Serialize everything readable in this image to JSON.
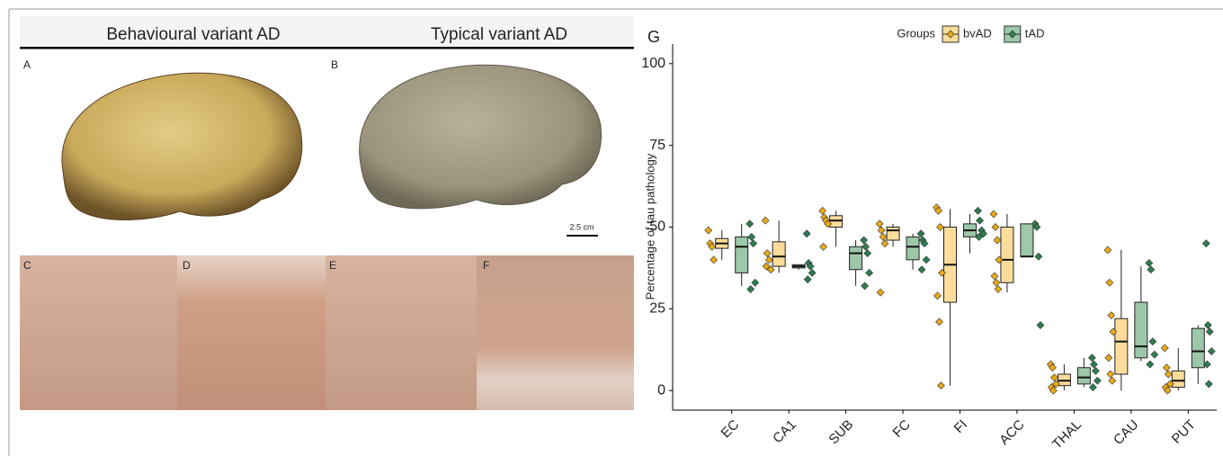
{
  "figure": {
    "headers": [
      "Behavioural variant AD",
      "Typical variant AD"
    ],
    "panel_labels": [
      "A",
      "B",
      "C",
      "D",
      "E",
      "F",
      "G"
    ],
    "scale_bar": "2.5 cm"
  },
  "chart_data": {
    "type": "box",
    "categories": [
      "EC",
      "CA1",
      "SUB",
      "FC",
      "FI",
      "ACC",
      "THAL",
      "CAU",
      "PUT"
    ],
    "ylabel": "Percentage of tau pathology",
    "legend_title": "Groups",
    "ylim": [
      -6,
      106
    ],
    "yticks": [
      0,
      25,
      50,
      75,
      100
    ],
    "series": [
      {
        "name": "bvAD",
        "color": "#e8a917",
        "fill": "#fbdc9a",
        "min": [
          40,
          36,
          44,
          44,
          1.5,
          30,
          0,
          0,
          0
        ],
        "q1": [
          43.5,
          38,
          50,
          46,
          27,
          33,
          1.5,
          5,
          1
        ],
        "median": [
          45,
          41,
          52,
          49,
          38.5,
          40,
          3,
          15,
          3
        ],
        "q3": [
          46.5,
          45.5,
          53.5,
          50,
          50,
          50,
          5,
          22,
          6
        ],
        "max": [
          49,
          52,
          55,
          51,
          55.5,
          54,
          8,
          43,
          13
        ],
        "points": [
          [
            49,
            45,
            44,
            40
          ],
          [
            52,
            42,
            40,
            37,
            38
          ],
          [
            55,
            53,
            52,
            51,
            44
          ],
          [
            51,
            49,
            47,
            45,
            30
          ],
          [
            56,
            55,
            50,
            36,
            29,
            21,
            1.5
          ],
          [
            54,
            50,
            46,
            40,
            35,
            33,
            31
          ],
          [
            8,
            7,
            4,
            2,
            1,
            0
          ],
          [
            43,
            33,
            23,
            18,
            10,
            5,
            3
          ],
          [
            13,
            7,
            5,
            2,
            1,
            0
          ]
        ]
      },
      {
        "name": "tAD",
        "color": "#2e7d4f",
        "fill": "#9cc7a8",
        "min": [
          32,
          37,
          32,
          37,
          42,
          41,
          1,
          9,
          2
        ],
        "q1": [
          36,
          37.5,
          37,
          40,
          47,
          41,
          2,
          10,
          7
        ],
        "median": [
          44,
          38,
          42,
          44,
          49,
          41,
          4,
          13.5,
          12
        ],
        "q3": [
          47,
          38.5,
          44,
          47,
          51,
          51,
          7,
          27,
          19
        ],
        "max": [
          51,
          38.5,
          46,
          48,
          54,
          51,
          10,
          38,
          20
        ],
        "points": [
          [
            51,
            47,
            45,
            33,
            31
          ],
          [
            48,
            39,
            38,
            36,
            34
          ],
          [
            46,
            44,
            42,
            36,
            32
          ],
          [
            48,
            46,
            45,
            40,
            37
          ],
          [
            55,
            52,
            49,
            48,
            47
          ],
          [
            51,
            50,
            41,
            20
          ],
          [
            10,
            8,
            6,
            3,
            1
          ],
          [
            39,
            37,
            15,
            11,
            8
          ],
          [
            45,
            20,
            18,
            12,
            8,
            2
          ]
        ]
      }
    ]
  }
}
